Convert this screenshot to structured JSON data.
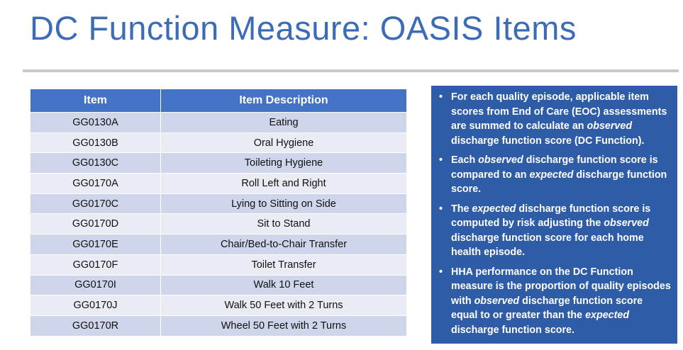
{
  "header": {
    "title": "DC Function Measure: OASIS Items"
  },
  "table": {
    "columns": [
      "Item",
      "Item Description"
    ],
    "rows": [
      [
        "GG0130A",
        "Eating"
      ],
      [
        "GG0130B",
        "Oral Hygiene"
      ],
      [
        "GG0130C",
        "Toileting Hygiene"
      ],
      [
        "GG0170A",
        "Roll Left and Right"
      ],
      [
        "GG0170C",
        "Lying to Sitting on Side"
      ],
      [
        "GG0170D",
        "Sit to Stand"
      ],
      [
        "GG0170E",
        "Chair/Bed-to-Chair Transfer"
      ],
      [
        "GG0170F",
        "Toilet Transfer"
      ],
      [
        "GG0170I",
        "Walk 10 Feet"
      ],
      [
        "GG0170J",
        "Walk 50 Feet with 2 Turns"
      ],
      [
        "GG0170R",
        "Wheel 50 Feet with 2 Turns"
      ]
    ]
  },
  "bullets": [
    [
      {
        "text": "For each quality episode, applicable item scores from End of Care (EOC) assessments are summed to calculate an ",
        "italic": false
      },
      {
        "text": "observed",
        "italic": true
      },
      {
        "text": " discharge function score (DC Function).",
        "italic": false
      }
    ],
    [
      {
        "text": "Each ",
        "italic": false
      },
      {
        "text": "observed",
        "italic": true
      },
      {
        "text": " discharge function score is compared to an ",
        "italic": false
      },
      {
        "text": "expected",
        "italic": true
      },
      {
        "text": " discharge function score.",
        "italic": false
      }
    ],
    [
      {
        "text": "The ",
        "italic": false
      },
      {
        "text": "expected",
        "italic": true
      },
      {
        "text": " discharge function score is computed by risk adjusting the ",
        "italic": false
      },
      {
        "text": "observed",
        "italic": true
      },
      {
        "text": " discharge function score for each home health episode.",
        "italic": false
      }
    ],
    [
      {
        "text": "HHA performance on the DC Function measure is the proportion of quality episodes with ",
        "italic": false
      },
      {
        "text": "observed",
        "italic": true
      },
      {
        "text": " discharge function score equal to or greater than the ",
        "italic": false
      },
      {
        "text": "expected",
        "italic": true
      },
      {
        "text": " discharge function score.",
        "italic": false
      }
    ]
  ]
}
